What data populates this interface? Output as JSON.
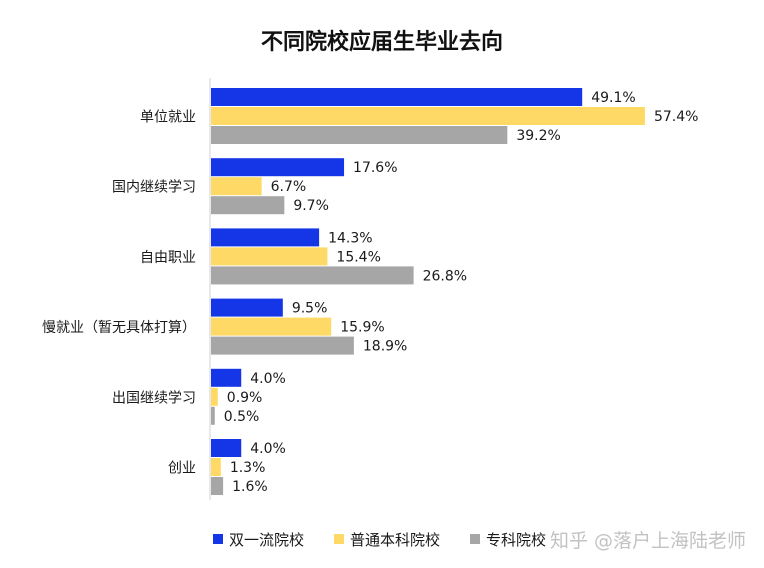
{
  "chart_data": {
    "type": "bar",
    "orientation": "horizontal",
    "title": "不同院校应届生毕业去向",
    "categories": [
      "单位就业",
      "国内继续学习",
      "自由职业",
      "慢就业（暂无具体打算）",
      "出国继续学习",
      "创业"
    ],
    "series": [
      {
        "name": "双一流院校",
        "color": "#1436e6",
        "values": [
          49.1,
          17.6,
          14.3,
          9.5,
          4.0,
          4.0
        ]
      },
      {
        "name": "普通本科院校",
        "color": "#ffd966",
        "values": [
          57.4,
          6.7,
          15.4,
          15.9,
          0.9,
          1.3
        ]
      },
      {
        "name": "专科院校",
        "color": "#a6a6a6",
        "values": [
          39.2,
          9.7,
          26.8,
          18.9,
          0.5,
          1.6
        ]
      }
    ],
    "value_suffix": "%",
    "xlim": [
      0,
      60
    ],
    "grid": false,
    "legend_position": "bottom"
  },
  "watermark": "知乎 @落户上海陆老师"
}
